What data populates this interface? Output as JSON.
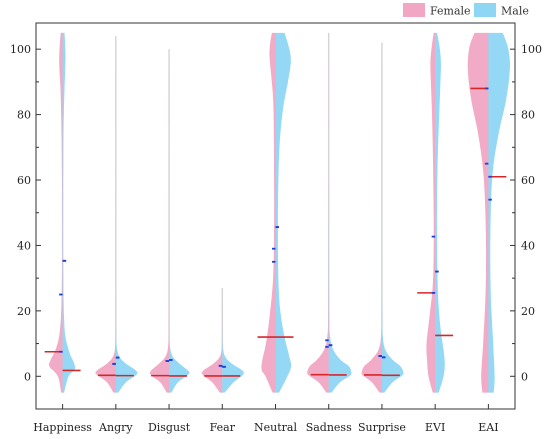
{
  "chart_data": {
    "type": "split-violin",
    "categories": [
      "Happiness",
      "Angry",
      "Disgust",
      "Fear",
      "Neutral",
      "Sadness",
      "Surprise",
      "EVI",
      "EAI"
    ],
    "y_ticks": [
      0,
      20,
      40,
      60,
      80,
      100
    ],
    "ylim": [
      -10,
      108
    ],
    "legend": {
      "position": "top-right"
    },
    "series": [
      {
        "name": "Female",
        "color": "#f1a7c4",
        "median_color": "#d62728",
        "medians": [
          7.5,
          0.3,
          0.2,
          0.1,
          12.0,
          0.5,
          0.4,
          25.5,
          88.0
        ],
        "means": [
          25.0,
          3.8,
          4.7,
          3.2,
          35.0,
          11.0,
          6.2,
          42.7,
          65.0
        ],
        "q3": [
          7.5,
          3.8,
          4.7,
          3.2,
          39.0,
          9.0,
          6.2,
          25.5,
          88.0
        ],
        "data_max": [
          105,
          104,
          100,
          27,
          105,
          105,
          102,
          105,
          105
        ],
        "density": [
          [
            [
              -5,
              0.06
            ],
            [
              0,
              0.2
            ],
            [
              3,
              0.55
            ],
            [
              5,
              0.5
            ],
            [
              8,
              0.3
            ],
            [
              12,
              0.15
            ],
            [
              18,
              0.07
            ],
            [
              25,
              0.04
            ],
            [
              35,
              0.02
            ],
            [
              50,
              0.02
            ],
            [
              65,
              0.03
            ],
            [
              80,
              0.06
            ],
            [
              88,
              0.09
            ],
            [
              95,
              0.14
            ],
            [
              100,
              0.13
            ],
            [
              105,
              0.08
            ]
          ],
          [
            [
              -5,
              0.1
            ],
            [
              -2,
              0.35
            ],
            [
              0,
              0.7
            ],
            [
              1,
              0.85
            ],
            [
              2,
              0.75
            ],
            [
              4,
              0.35
            ],
            [
              6,
              0.12
            ],
            [
              9,
              0.03
            ],
            [
              15,
              0.008
            ],
            [
              30,
              0.004
            ],
            [
              60,
              0.002
            ],
            [
              104,
              0.001
            ]
          ],
          [
            [
              -5,
              0.1
            ],
            [
              -2,
              0.35
            ],
            [
              0,
              0.7
            ],
            [
              1,
              0.8
            ],
            [
              2,
              0.72
            ],
            [
              4,
              0.4
            ],
            [
              6,
              0.15
            ],
            [
              9,
              0.04
            ],
            [
              15,
              0.01
            ],
            [
              40,
              0.004
            ],
            [
              100,
              0.001
            ]
          ],
          [
            [
              -5,
              0.1
            ],
            [
              -2,
              0.4
            ],
            [
              0,
              0.75
            ],
            [
              1,
              0.85
            ],
            [
              2,
              0.75
            ],
            [
              4,
              0.35
            ],
            [
              6,
              0.1
            ],
            [
              9,
              0.02
            ],
            [
              15,
              0.006
            ],
            [
              27,
              0.002
            ]
          ],
          [
            [
              -5,
              0.12
            ],
            [
              0,
              0.42
            ],
            [
              2,
              0.58
            ],
            [
              5,
              0.55
            ],
            [
              10,
              0.4
            ],
            [
              18,
              0.25
            ],
            [
              30,
              0.1
            ],
            [
              45,
              0.06
            ],
            [
              60,
              0.06
            ],
            [
              75,
              0.07
            ],
            [
              85,
              0.1
            ],
            [
              92,
              0.18
            ],
            [
              98,
              0.25
            ],
            [
              102,
              0.22
            ],
            [
              105,
              0.15
            ]
          ],
          [
            [
              -5,
              0.1
            ],
            [
              -2,
              0.4
            ],
            [
              0,
              0.78
            ],
            [
              1,
              0.9
            ],
            [
              3,
              0.8
            ],
            [
              5,
              0.5
            ],
            [
              8,
              0.2
            ],
            [
              12,
              0.06
            ],
            [
              20,
              0.02
            ],
            [
              50,
              0.006
            ],
            [
              105,
              0.002
            ]
          ],
          [
            [
              -5,
              0.1
            ],
            [
              -2,
              0.4
            ],
            [
              0,
              0.75
            ],
            [
              1,
              0.85
            ],
            [
              3,
              0.75
            ],
            [
              5,
              0.45
            ],
            [
              8,
              0.15
            ],
            [
              12,
              0.04
            ],
            [
              20,
              0.01
            ],
            [
              50,
              0.005
            ],
            [
              102,
              0.002
            ]
          ],
          [
            [
              -5,
              0.1
            ],
            [
              0,
              0.28
            ],
            [
              5,
              0.34
            ],
            [
              10,
              0.36
            ],
            [
              18,
              0.24
            ],
            [
              28,
              0.1
            ],
            [
              40,
              0.06
            ],
            [
              55,
              0.07
            ],
            [
              70,
              0.1
            ],
            [
              82,
              0.14
            ],
            [
              90,
              0.18
            ],
            [
              96,
              0.2
            ],
            [
              101,
              0.14
            ],
            [
              105,
              0.06
            ]
          ],
          [
            [
              -5,
              0.25
            ],
            [
              0,
              0.3
            ],
            [
              10,
              0.22
            ],
            [
              25,
              0.12
            ],
            [
              40,
              0.1
            ],
            [
              55,
              0.15
            ],
            [
              65,
              0.25
            ],
            [
              75,
              0.45
            ],
            [
              83,
              0.68
            ],
            [
              90,
              0.82
            ],
            [
              96,
              0.86
            ],
            [
              101,
              0.78
            ],
            [
              105,
              0.58
            ]
          ]
        ]
      },
      {
        "name": "Male",
        "color": "#8fd6f5",
        "median_color": "#d62728",
        "medians": [
          1.8,
          0.2,
          0.1,
          0.1,
          12.0,
          0.4,
          0.3,
          12.5,
          61.0
        ],
        "means": [
          35.3,
          5.7,
          5.0,
          2.9,
          45.6,
          9.5,
          5.8,
          32.0,
          54.0
        ],
        "q3": [
          35.3,
          5.7,
          5.0,
          2.9,
          45.6,
          9.5,
          5.8,
          32.0,
          61.0
        ],
        "data_max": [
          105,
          104,
          100,
          27,
          105,
          105,
          102,
          105,
          105
        ],
        "density": [
          [
            [
              -5,
              0.06
            ],
            [
              0,
              0.25
            ],
            [
              2,
              0.5
            ],
            [
              4,
              0.48
            ],
            [
              7,
              0.3
            ],
            [
              12,
              0.12
            ],
            [
              18,
              0.06
            ],
            [
              28,
              0.03
            ],
            [
              40,
              0.02
            ],
            [
              55,
              0.02
            ],
            [
              70,
              0.03
            ],
            [
              80,
              0.05
            ],
            [
              88,
              0.08
            ],
            [
              94,
              0.11
            ],
            [
              99,
              0.12
            ],
            [
              105,
              0.08
            ]
          ],
          [
            [
              -5,
              0.1
            ],
            [
              -2,
              0.4
            ],
            [
              0,
              0.78
            ],
            [
              1,
              0.9
            ],
            [
              2,
              0.8
            ],
            [
              4,
              0.4
            ],
            [
              6,
              0.15
            ],
            [
              9,
              0.04
            ],
            [
              15,
              0.01
            ],
            [
              30,
              0.004
            ],
            [
              60,
              0.002
            ],
            [
              104,
              0.001
            ]
          ],
          [
            [
              -5,
              0.1
            ],
            [
              -2,
              0.35
            ],
            [
              0,
              0.72
            ],
            [
              1,
              0.85
            ],
            [
              2,
              0.75
            ],
            [
              4,
              0.42
            ],
            [
              6,
              0.16
            ],
            [
              9,
              0.04
            ],
            [
              15,
              0.01
            ],
            [
              40,
              0.004
            ],
            [
              100,
              0.001
            ]
          ],
          [
            [
              -5,
              0.1
            ],
            [
              -2,
              0.45
            ],
            [
              0,
              0.8
            ],
            [
              1,
              0.9
            ],
            [
              2,
              0.8
            ],
            [
              4,
              0.38
            ],
            [
              6,
              0.12
            ],
            [
              9,
              0.03
            ],
            [
              15,
              0.006
            ],
            [
              27,
              0.002
            ]
          ],
          [
            [
              -5,
              0.15
            ],
            [
              0,
              0.5
            ],
            [
              3,
              0.65
            ],
            [
              6,
              0.58
            ],
            [
              12,
              0.38
            ],
            [
              20,
              0.2
            ],
            [
              30,
              0.12
            ],
            [
              45,
              0.1
            ],
            [
              60,
              0.12
            ],
            [
              72,
              0.18
            ],
            [
              82,
              0.32
            ],
            [
              90,
              0.52
            ],
            [
              96,
              0.64
            ],
            [
              100,
              0.58
            ],
            [
              105,
              0.38
            ]
          ],
          [
            [
              -5,
              0.12
            ],
            [
              -2,
              0.45
            ],
            [
              0,
              0.85
            ],
            [
              1,
              0.95
            ],
            [
              3,
              0.85
            ],
            [
              5,
              0.5
            ],
            [
              8,
              0.2
            ],
            [
              12,
              0.06
            ],
            [
              20,
              0.02
            ],
            [
              50,
              0.006
            ],
            [
              105,
              0.002
            ]
          ],
          [
            [
              -5,
              0.1
            ],
            [
              -2,
              0.42
            ],
            [
              0,
              0.8
            ],
            [
              1,
              0.9
            ],
            [
              3,
              0.78
            ],
            [
              5,
              0.45
            ],
            [
              8,
              0.15
            ],
            [
              12,
              0.04
            ],
            [
              20,
              0.01
            ],
            [
              50,
              0.005
            ],
            [
              102,
              0.002
            ]
          ],
          [
            [
              -5,
              0.15
            ],
            [
              0,
              0.35
            ],
            [
              4,
              0.4
            ],
            [
              8,
              0.35
            ],
            [
              15,
              0.22
            ],
            [
              25,
              0.12
            ],
            [
              40,
              0.08
            ],
            [
              55,
              0.08
            ],
            [
              70,
              0.12
            ],
            [
              82,
              0.18
            ],
            [
              90,
              0.22
            ],
            [
              96,
              0.24
            ],
            [
              101,
              0.18
            ],
            [
              105,
              0.08
            ]
          ],
          [
            [
              -5,
              0.22
            ],
            [
              0,
              0.26
            ],
            [
              10,
              0.2
            ],
            [
              25,
              0.1
            ],
            [
              40,
              0.08
            ],
            [
              55,
              0.12
            ],
            [
              65,
              0.22
            ],
            [
              75,
              0.45
            ],
            [
              83,
              0.7
            ],
            [
              90,
              0.85
            ],
            [
              96,
              0.9
            ],
            [
              101,
              0.8
            ],
            [
              105,
              0.6
            ]
          ]
        ]
      }
    ]
  }
}
